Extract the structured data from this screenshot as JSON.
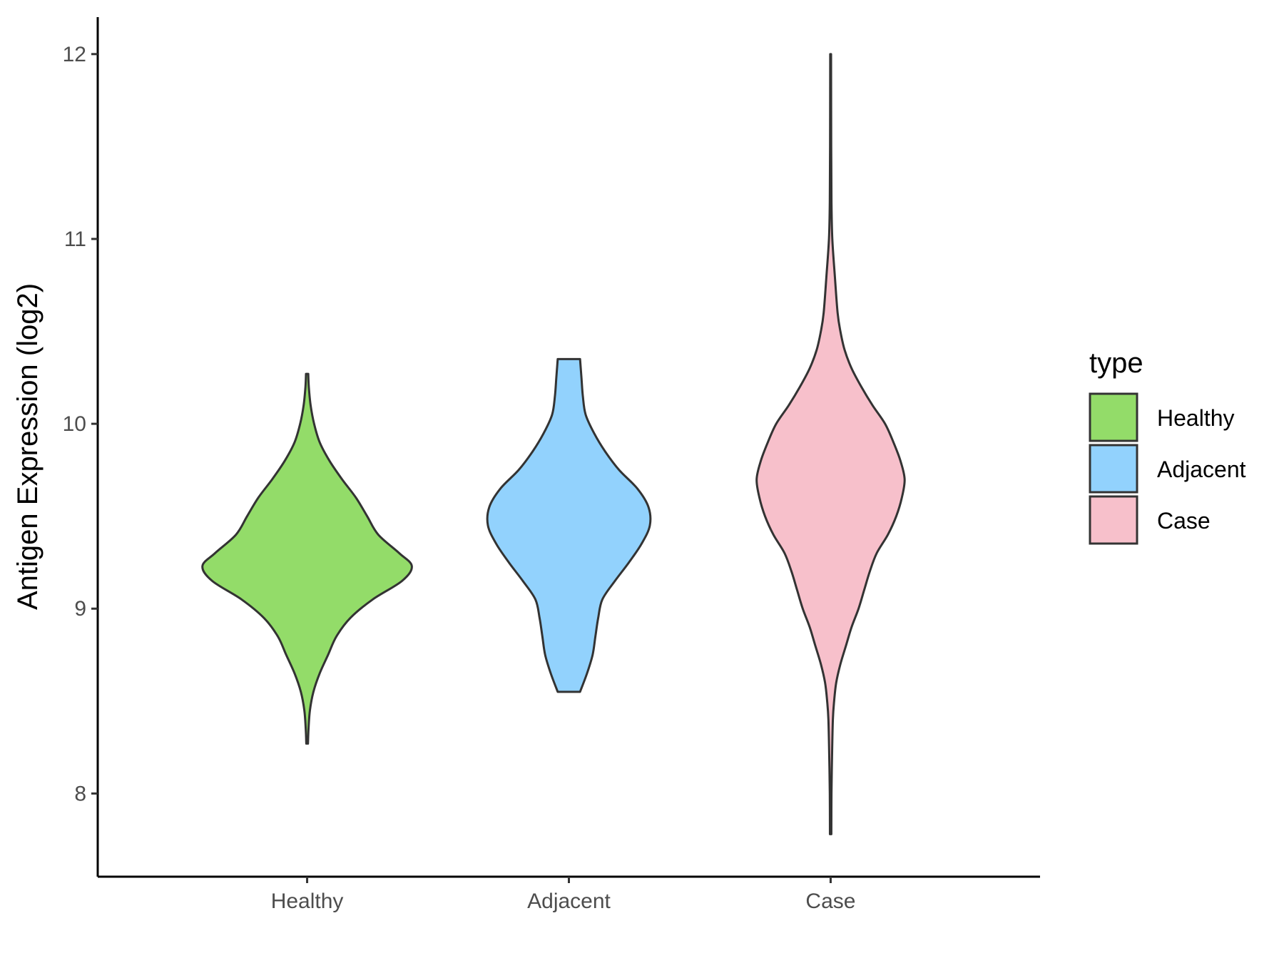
{
  "chart_data": {
    "type": "violin",
    "title": "",
    "xlabel": "",
    "ylabel": "Antigen Expression (log2)",
    "categories": [
      "Healthy",
      "Adjacent",
      "Case"
    ],
    "ylim": [
      7.55,
      12.2
    ],
    "yticks": [
      8,
      9,
      10,
      11,
      12
    ],
    "ytick_labels": [
      "8",
      "9",
      "10",
      "11",
      "12"
    ],
    "grid": false,
    "legend": {
      "title": "type",
      "placement": "right",
      "entries": [
        "Healthy",
        "Adjacent",
        "Case"
      ]
    },
    "colors": {
      "Healthy": "#93dc69",
      "Adjacent": "#92d2fd",
      "Case": "#f7c0cb",
      "outline": "#333333"
    },
    "series": [
      {
        "name": "Healthy",
        "min": 8.27,
        "max": 10.27,
        "density_profile": [
          [
            8.27,
            0.006
          ],
          [
            8.35,
            0.01
          ],
          [
            8.45,
            0.02
          ],
          [
            8.55,
            0.045
          ],
          [
            8.65,
            0.09
          ],
          [
            8.75,
            0.15
          ],
          [
            8.85,
            0.21
          ],
          [
            8.95,
            0.31
          ],
          [
            9.05,
            0.47
          ],
          [
            9.15,
            0.68
          ],
          [
            9.23,
            0.75
          ],
          [
            9.3,
            0.66
          ],
          [
            9.4,
            0.51
          ],
          [
            9.5,
            0.43
          ],
          [
            9.6,
            0.35
          ],
          [
            9.7,
            0.25
          ],
          [
            9.8,
            0.16
          ],
          [
            9.9,
            0.09
          ],
          [
            10.0,
            0.05
          ],
          [
            10.1,
            0.025
          ],
          [
            10.2,
            0.012
          ],
          [
            10.27,
            0.008
          ]
        ]
      },
      {
        "name": "Adjacent",
        "min": 8.55,
        "max": 10.35,
        "density_profile": [
          [
            8.55,
            0.08
          ],
          [
            8.65,
            0.13
          ],
          [
            8.75,
            0.17
          ],
          [
            8.85,
            0.19
          ],
          [
            8.95,
            0.21
          ],
          [
            9.05,
            0.24
          ],
          [
            9.15,
            0.33
          ],
          [
            9.25,
            0.43
          ],
          [
            9.35,
            0.52
          ],
          [
            9.45,
            0.58
          ],
          [
            9.55,
            0.57
          ],
          [
            9.65,
            0.49
          ],
          [
            9.75,
            0.36
          ],
          [
            9.85,
            0.26
          ],
          [
            9.95,
            0.18
          ],
          [
            10.05,
            0.12
          ],
          [
            10.15,
            0.1
          ],
          [
            10.25,
            0.09
          ],
          [
            10.35,
            0.08
          ]
        ]
      },
      {
        "name": "Case",
        "min": 7.78,
        "max": 12.0,
        "density_profile": [
          [
            7.78,
            0.005
          ],
          [
            8.0,
            0.006
          ],
          [
            8.2,
            0.01
          ],
          [
            8.4,
            0.016
          ],
          [
            8.5,
            0.025
          ],
          [
            8.6,
            0.04
          ],
          [
            8.7,
            0.07
          ],
          [
            8.8,
            0.11
          ],
          [
            8.9,
            0.15
          ],
          [
            9.0,
            0.2
          ],
          [
            9.1,
            0.24
          ],
          [
            9.2,
            0.28
          ],
          [
            9.3,
            0.33
          ],
          [
            9.4,
            0.41
          ],
          [
            9.5,
            0.47
          ],
          [
            9.6,
            0.51
          ],
          [
            9.7,
            0.53
          ],
          [
            9.8,
            0.5
          ],
          [
            9.9,
            0.45
          ],
          [
            10.0,
            0.39
          ],
          [
            10.1,
            0.3
          ],
          [
            10.2,
            0.22
          ],
          [
            10.3,
            0.15
          ],
          [
            10.4,
            0.1
          ],
          [
            10.5,
            0.07
          ],
          [
            10.6,
            0.05
          ],
          [
            10.8,
            0.03
          ],
          [
            11.0,
            0.012
          ],
          [
            11.2,
            0.006
          ],
          [
            11.5,
            0.004
          ],
          [
            12.0,
            0.003
          ]
        ]
      }
    ]
  }
}
